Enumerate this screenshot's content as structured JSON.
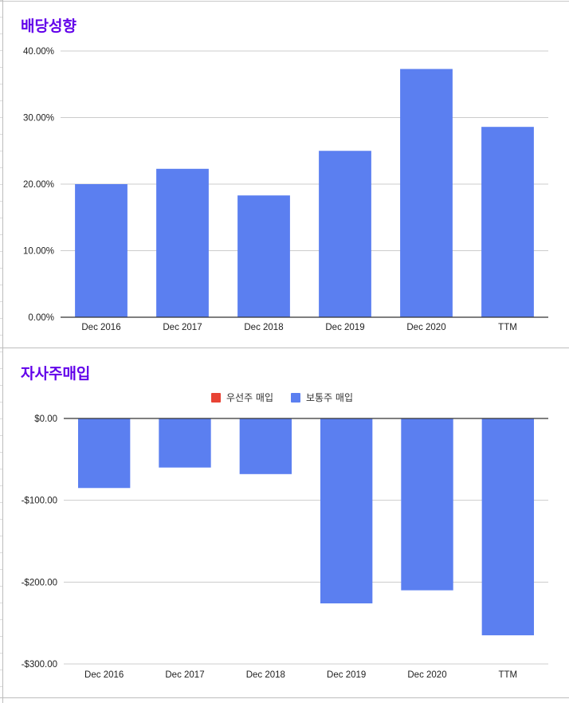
{
  "colors": {
    "title": "#6200ea",
    "bar": "#5b7ff0",
    "gridline": "#cccccc",
    "axis": "#333333",
    "legend_preferred": "#e84335"
  },
  "chart_data": [
    {
      "type": "bar",
      "title": "배당성향",
      "categories": [
        "Dec 2016",
        "Dec 2017",
        "Dec 2018",
        "Dec 2019",
        "Dec 2020",
        "TTM"
      ],
      "series": [
        {
          "values": [
            20.0,
            22.3,
            18.3,
            25.0,
            37.3,
            28.6
          ]
        }
      ],
      "ylim": [
        0,
        40
      ],
      "yticks": [
        {
          "value": 0,
          "label": "0.00%"
        },
        {
          "value": 10,
          "label": "10.00%"
        },
        {
          "value": 20,
          "label": "20.00%"
        },
        {
          "value": 30,
          "label": "30.00%"
        },
        {
          "value": 40,
          "label": "40.00%"
        }
      ],
      "grid": true,
      "legend": "none"
    },
    {
      "type": "bar",
      "title": "자사주매입",
      "categories": [
        "Dec 2016",
        "Dec 2017",
        "Dec 2018",
        "Dec 2019",
        "Dec 2020",
        "TTM"
      ],
      "series": [
        {
          "name": "우선주 매입",
          "values": [
            0,
            0,
            0,
            0,
            0,
            0
          ]
        },
        {
          "name": "보통주 매입",
          "values": [
            -85,
            -60,
            -68,
            -226,
            -210,
            -265
          ]
        }
      ],
      "ylim": [
        -300,
        0
      ],
      "yticks": [
        {
          "value": 0,
          "label": "$0.00"
        },
        {
          "value": -100,
          "label": "-$100.00"
        },
        {
          "value": -200,
          "label": "-$200.00"
        },
        {
          "value": -300,
          "label": "-$300.00"
        }
      ],
      "grid": true,
      "legend": "top"
    }
  ]
}
